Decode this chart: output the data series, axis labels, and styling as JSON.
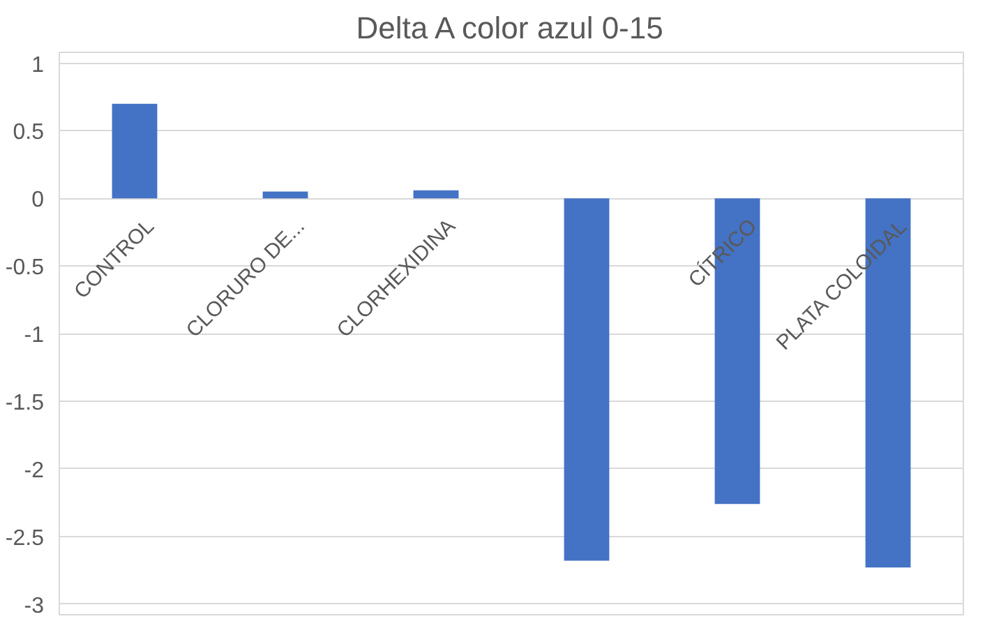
{
  "chart_data": {
    "type": "bar",
    "title": "Delta A color azul 0-15",
    "categories": [
      "CONTROL",
      "CLORURO DE...",
      "CLORHEXIDINA",
      null,
      "CÍTRICO",
      "PLATA COLOIDAL"
    ],
    "values": [
      0.7,
      0.05,
      0.06,
      -2.68,
      -2.26,
      -2.73
    ],
    "color": "#4472c4",
    "ylim": [
      -3,
      1
    ],
    "yticks": [
      1,
      0.5,
      0,
      -0.5,
      -1,
      -1.5,
      -2,
      -2.5,
      -3
    ],
    "grid": "y"
  }
}
